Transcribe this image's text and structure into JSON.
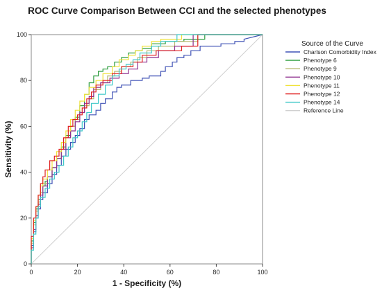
{
  "chart_data": {
    "type": "line",
    "title": "ROC Curve Comparison Between CCI and the selected phenotypes",
    "xlabel": "1 - Specificity (%)",
    "ylabel": "Sensitivity (%)",
    "xlim": [
      0,
      100
    ],
    "ylim": [
      0,
      100
    ],
    "x_ticks": [
      0,
      20,
      40,
      60,
      80,
      100
    ],
    "y_ticks": [
      0,
      20,
      40,
      60,
      80,
      100
    ],
    "grid": false,
    "legend": {
      "title": "Source of the Curve",
      "position": "right"
    },
    "series": [
      {
        "name": "Charlson Comorbidity Index",
        "color": "#3f51b5",
        "x": [
          0,
          0,
          1,
          1,
          2,
          2,
          3,
          3,
          4,
          4,
          5,
          5,
          7,
          7,
          9,
          9,
          11,
          11,
          13,
          13,
          15,
          15,
          17,
          17,
          19,
          19,
          21,
          21,
          23,
          23,
          25,
          25,
          28,
          28,
          30,
          30,
          32,
          32,
          35,
          35,
          37,
          37,
          39,
          39,
          43,
          43,
          48,
          48,
          51,
          51,
          56,
          56,
          58,
          58,
          61,
          61,
          63,
          63,
          66,
          66,
          69,
          69,
          73,
          73,
          82,
          82,
          88,
          88,
          92,
          92,
          100
        ],
        "y": [
          0,
          8,
          8,
          14,
          14,
          20,
          20,
          24,
          24,
          28,
          28,
          31,
          31,
          35,
          35,
          39,
          39,
          43,
          43,
          47,
          47,
          50,
          50,
          53,
          53,
          56,
          56,
          59,
          59,
          63,
          63,
          65,
          65,
          67,
          67,
          70,
          70,
          72,
          72,
          75,
          75,
          77,
          77,
          78,
          78,
          80,
          80,
          81,
          81,
          82,
          82,
          84,
          84,
          86,
          86,
          88,
          88,
          90,
          90,
          91,
          91,
          93,
          93,
          95,
          95,
          96,
          96,
          97,
          97,
          98,
          100
        ]
      },
      {
        "name": "Phenotype 6",
        "color": "#2e9e3f",
        "x": [
          0,
          0,
          1,
          1,
          2,
          2,
          3,
          3,
          4,
          4,
          5,
          5,
          6,
          6,
          7,
          7,
          9,
          9,
          11,
          11,
          13,
          13,
          15,
          15,
          17,
          17,
          19,
          19,
          21,
          21,
          23,
          23,
          25,
          25,
          27,
          27,
          29,
          29,
          31,
          31,
          33,
          33,
          36,
          36,
          39,
          39,
          42,
          42,
          45,
          45,
          48,
          48,
          52,
          52,
          58,
          58,
          66,
          66,
          75,
          75,
          100
        ],
        "y": [
          0,
          10,
          10,
          18,
          18,
          24,
          24,
          28,
          28,
          31,
          31,
          34,
          34,
          36,
          36,
          38,
          38,
          42,
          42,
          46,
          46,
          51,
          51,
          56,
          56,
          60,
          60,
          64,
          64,
          69,
          69,
          74,
          74,
          79,
          79,
          82,
          82,
          84,
          84,
          85,
          85,
          86,
          86,
          88,
          88,
          90,
          90,
          92,
          92,
          93,
          93,
          94,
          94,
          96,
          96,
          97,
          97,
          98,
          98,
          100,
          100
        ]
      },
      {
        "name": "Phenotype 9",
        "color": "#b8b870",
        "x": [
          0,
          0,
          1,
          1,
          2,
          2,
          3,
          3,
          4,
          4,
          5,
          5,
          7,
          7,
          9,
          9,
          11,
          11,
          13,
          13,
          15,
          15,
          17,
          17,
          19,
          19,
          21,
          21,
          23,
          23,
          25,
          25,
          27,
          27,
          30,
          30,
          33,
          33,
          36,
          36,
          39,
          39,
          43,
          43,
          46,
          46,
          50,
          50,
          55,
          55,
          62,
          62,
          72,
          72,
          100
        ],
        "y": [
          0,
          9,
          9,
          17,
          17,
          23,
          23,
          27,
          27,
          31,
          31,
          35,
          35,
          38,
          38,
          42,
          42,
          46,
          46,
          50,
          50,
          55,
          55,
          60,
          60,
          63,
          63,
          66,
          66,
          69,
          69,
          72,
          72,
          76,
          76,
          79,
          79,
          82,
          82,
          84,
          84,
          86,
          86,
          88,
          88,
          90,
          90,
          93,
          93,
          95,
          95,
          97,
          97,
          100,
          100
        ]
      },
      {
        "name": "Phenotype 10",
        "color": "#8e2d8e",
        "x": [
          0,
          0,
          1,
          1,
          2,
          2,
          3,
          3,
          4,
          4,
          5,
          5,
          7,
          7,
          9,
          9,
          11,
          11,
          13,
          13,
          15,
          15,
          17,
          17,
          19,
          19,
          21,
          21,
          23,
          23,
          25,
          25,
          27,
          27,
          30,
          30,
          34,
          34,
          38,
          38,
          42,
          42,
          46,
          46,
          50,
          50,
          55,
          55,
          62,
          62,
          70,
          70,
          100
        ],
        "y": [
          0,
          7,
          7,
          15,
          15,
          21,
          21,
          26,
          26,
          30,
          30,
          34,
          34,
          38,
          38,
          42,
          42,
          46,
          46,
          50,
          50,
          55,
          55,
          58,
          58,
          62,
          62,
          66,
          66,
          70,
          70,
          73,
          73,
          77,
          77,
          79,
          79,
          81,
          81,
          83,
          83,
          85,
          85,
          88,
          88,
          90,
          90,
          93,
          93,
          95,
          95,
          100,
          100
        ]
      },
      {
        "name": "Phenotype 11",
        "color": "#f0e23a",
        "x": [
          0,
          0,
          1,
          1,
          2,
          2,
          3,
          3,
          4,
          4,
          5,
          5,
          7,
          7,
          9,
          9,
          11,
          11,
          13,
          13,
          15,
          15,
          17,
          17,
          19,
          19,
          21,
          21,
          23,
          23,
          25,
          25,
          28,
          28,
          31,
          31,
          35,
          35,
          38,
          38,
          42,
          42,
          45,
          45,
          48,
          48,
          52,
          52,
          56,
          56,
          65,
          65,
          100
        ],
        "y": [
          0,
          11,
          11,
          19,
          19,
          25,
          25,
          30,
          30,
          34,
          34,
          37,
          37,
          41,
          41,
          45,
          45,
          49,
          49,
          53,
          53,
          58,
          58,
          63,
          63,
          67,
          67,
          71,
          71,
          74,
          74,
          77,
          77,
          80,
          80,
          83,
          83,
          86,
          86,
          89,
          89,
          91,
          91,
          93,
          93,
          95,
          95,
          97,
          97,
          98,
          98,
          100,
          100
        ]
      },
      {
        "name": "Phenotype 12",
        "color": "#e02020",
        "x": [
          0,
          0,
          1,
          1,
          2,
          2,
          3,
          3,
          4,
          4,
          5,
          5,
          6,
          6,
          8,
          8,
          10,
          10,
          12,
          12,
          14,
          14,
          16,
          16,
          18,
          18,
          20,
          20,
          22,
          22,
          24,
          24,
          26,
          26,
          28,
          28,
          31,
          31,
          35,
          35,
          39,
          39,
          44,
          44,
          48,
          48,
          54,
          54,
          65,
          65,
          72,
          72,
          100
        ],
        "y": [
          0,
          12,
          12,
          20,
          20,
          25,
          25,
          30,
          30,
          35,
          35,
          38,
          38,
          41,
          41,
          45,
          45,
          47,
          47,
          50,
          50,
          55,
          55,
          60,
          60,
          63,
          63,
          65,
          65,
          68,
          68,
          72,
          72,
          75,
          75,
          78,
          78,
          80,
          80,
          83,
          83,
          86,
          86,
          88,
          88,
          91,
          91,
          93,
          93,
          95,
          95,
          100,
          100
        ]
      },
      {
        "name": "Phenotype 14",
        "color": "#3ec8c8",
        "x": [
          0,
          0,
          1,
          1,
          2,
          2,
          3,
          3,
          4,
          4,
          6,
          6,
          8,
          8,
          10,
          10,
          12,
          12,
          14,
          14,
          16,
          16,
          18,
          18,
          20,
          20,
          22,
          22,
          24,
          24,
          26,
          26,
          29,
          29,
          32,
          32,
          35,
          35,
          38,
          38,
          41,
          41,
          44,
          44,
          47,
          47,
          52,
          52,
          56,
          56,
          63,
          63,
          70,
          70,
          100
        ],
        "y": [
          0,
          6,
          6,
          13,
          13,
          20,
          20,
          25,
          25,
          29,
          29,
          33,
          33,
          37,
          37,
          40,
          40,
          43,
          43,
          47,
          47,
          51,
          51,
          55,
          55,
          58,
          58,
          62,
          62,
          66,
          66,
          70,
          70,
          74,
          74,
          78,
          78,
          82,
          82,
          85,
          85,
          87,
          87,
          89,
          89,
          92,
          92,
          95,
          95,
          97,
          97,
          100,
          100,
          100,
          100
        ]
      },
      {
        "name": "Reference Line",
        "color": "#d0d0d0",
        "x": [
          0,
          100
        ],
        "y": [
          0,
          100
        ]
      }
    ]
  }
}
